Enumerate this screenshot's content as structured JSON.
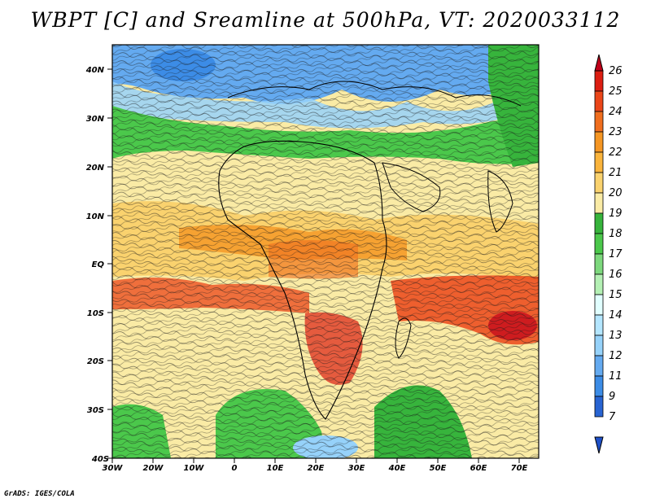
{
  "title": "WBPT [C] and Sreamline at 500hPa, VT: 2020033112",
  "credit": "GrADS: IGES/COLA",
  "lat_ticks": [
    "40N",
    "30N",
    "20N",
    "10N",
    "EQ",
    "10S",
    "20S",
    "30S",
    "40S"
  ],
  "lon_ticks": [
    "30W",
    "20W",
    "10W",
    "0",
    "10E",
    "20E",
    "30E",
    "40E",
    "50E",
    "60E",
    "70E"
  ],
  "colorbar": {
    "levels": [
      "26",
      "25",
      "24",
      "23",
      "22",
      "21",
      "20",
      "19",
      "18",
      "17",
      "16",
      "15",
      "14",
      "13",
      "12",
      "11",
      "9",
      "7"
    ],
    "colors": [
      "#c0001a",
      "#dc1e12",
      "#eb4619",
      "#f06e1e",
      "#f59623",
      "#fab43c",
      "#fad26e",
      "#faeba5",
      "#37b43c",
      "#4bc84b",
      "#7dd87d",
      "#b4f0b4",
      "#e1ffff",
      "#b4e6ff",
      "#96d2fa",
      "#64aaf0",
      "#3c8ce6",
      "#2864d2",
      "#1e50c8"
    ]
  }
}
